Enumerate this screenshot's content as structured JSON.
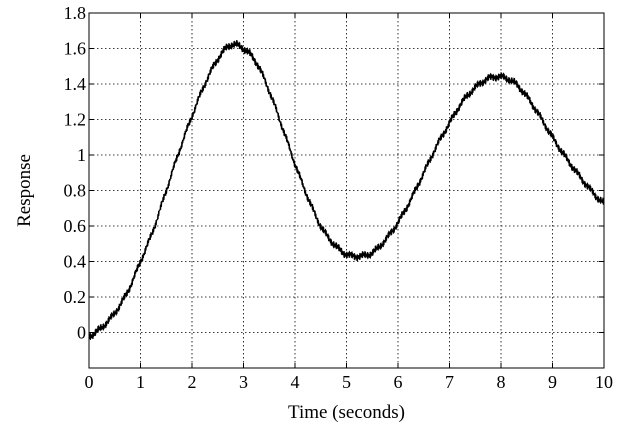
{
  "chart_data": {
    "type": "line",
    "title": "",
    "xlabel": "Time (seconds)",
    "ylabel": "Response",
    "xlim": [
      0,
      10
    ],
    "ylim": [
      -0.2,
      1.8
    ],
    "x_ticks": [
      "0",
      "1",
      "2",
      "3",
      "4",
      "5",
      "6",
      "7",
      "8",
      "9",
      "10"
    ],
    "y_ticks": [
      "0",
      "0.2",
      "0.4",
      "0.6",
      "0.8",
      "1",
      "1.2",
      "1.4",
      "1.6",
      "1.8"
    ],
    "grid": true,
    "grid_style": "dotted",
    "line_color": "#000000",
    "background": "#ffffff",
    "series": [
      {
        "x": [
          0,
          0.25,
          0.5,
          0.75,
          1.0,
          1.25,
          1.5,
          1.75,
          2.0,
          2.25,
          2.5,
          2.75,
          3.0,
          3.25,
          3.5,
          3.75,
          4.0,
          4.25,
          4.5,
          4.75,
          5.0,
          5.25,
          5.5,
          5.75,
          6.0,
          6.25,
          6.5,
          6.75,
          7.0,
          7.25,
          7.5,
          7.75,
          8.0,
          8.25,
          8.5,
          8.75,
          9.0,
          9.25,
          9.5,
          9.75,
          10.0
        ],
        "y": [
          -0.02,
          0.03,
          0.11,
          0.23,
          0.4,
          0.58,
          0.8,
          1.02,
          1.22,
          1.4,
          1.54,
          1.62,
          1.6,
          1.52,
          1.36,
          1.16,
          0.95,
          0.76,
          0.6,
          0.5,
          0.44,
          0.43,
          0.45,
          0.52,
          0.62,
          0.75,
          0.9,
          1.05,
          1.18,
          1.3,
          1.38,
          1.43,
          1.44,
          1.41,
          1.33,
          1.22,
          1.1,
          0.99,
          0.89,
          0.8,
          0.73
        ]
      }
    ]
  }
}
